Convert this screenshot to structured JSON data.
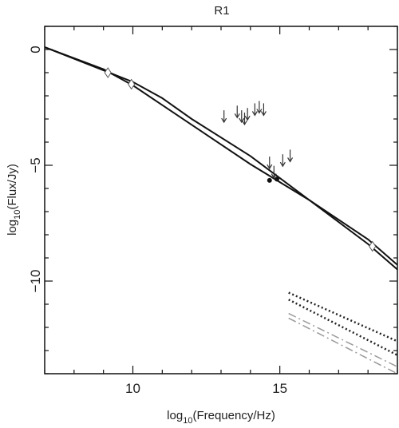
{
  "chart_data": {
    "type": "line",
    "title": "R1",
    "xlabel": "log_10(Frequency/Hz)",
    "ylabel": "log_10(Flux/Jy)",
    "xlabel_parts": {
      "pre": "log",
      "sub": "10",
      "post": "(Frequency/Hz)"
    },
    "ylabel_parts": {
      "pre": "log",
      "sub": "10",
      "post": "(Flux/Jy)"
    },
    "xlim": [
      7,
      19
    ],
    "ylim": [
      -14,
      1
    ],
    "xticks": [
      10,
      15
    ],
    "yticks": [
      0,
      -5,
      -10
    ],
    "xtick_labels": [
      "10",
      "15"
    ],
    "ytick_labels": [
      "0",
      "−5",
      "−10"
    ],
    "grid": false,
    "series": [
      {
        "style": "solid",
        "color": "#111111",
        "x": [
          7,
          9,
          10,
          11,
          12,
          14,
          16,
          18,
          19
        ],
        "y": [
          0.1,
          -0.9,
          -1.4,
          -2.1,
          -3.0,
          -4.6,
          -6.5,
          -8.4,
          -9.5
        ]
      },
      {
        "style": "solid",
        "color": "#111111",
        "x": [
          7,
          9,
          10,
          11,
          12,
          14,
          16,
          18,
          19
        ],
        "y": [
          0.1,
          -0.85,
          -1.55,
          -2.4,
          -3.25,
          -4.95,
          -6.5,
          -8.2,
          -9.3
        ]
      },
      {
        "style": "dotted",
        "color": "#222222",
        "x": [
          15.3,
          19
        ],
        "y": [
          -10.5,
          -12.6
        ]
      },
      {
        "style": "dotted",
        "color": "#222222",
        "x": [
          15.3,
          19
        ],
        "y": [
          -10.8,
          -13.2
        ]
      },
      {
        "style": "dashdot",
        "color": "#999999",
        "x": [
          15.3,
          19
        ],
        "y": [
          -11.4,
          -13.7
        ]
      },
      {
        "style": "dashdot",
        "color": "#999999",
        "x": [
          15.3,
          19
        ],
        "y": [
          -11.6,
          -14.0
        ]
      }
    ],
    "detections": [
      {
        "x": 9.15,
        "y": -1.0
      },
      {
        "x": 9.95,
        "y": -1.5
      },
      {
        "x": 18.15,
        "y": -8.5
      }
    ],
    "points": [
      {
        "x": 14.65,
        "y": -5.65
      },
      {
        "x": 14.9,
        "y": -5.6
      }
    ],
    "upper_limits": [
      {
        "x": 13.1,
        "y": -2.9
      },
      {
        "x": 13.55,
        "y": -2.7
      },
      {
        "x": 13.7,
        "y": -2.9
      },
      {
        "x": 13.8,
        "y": -3.0
      },
      {
        "x": 13.9,
        "y": -2.8
      },
      {
        "x": 14.15,
        "y": -2.6
      },
      {
        "x": 14.3,
        "y": -2.5
      },
      {
        "x": 14.45,
        "y": -2.6
      },
      {
        "x": 14.65,
        "y": -4.9
      },
      {
        "x": 14.8,
        "y": -5.3
      },
      {
        "x": 15.1,
        "y": -4.8
      },
      {
        "x": 15.35,
        "y": -4.6
      }
    ]
  }
}
